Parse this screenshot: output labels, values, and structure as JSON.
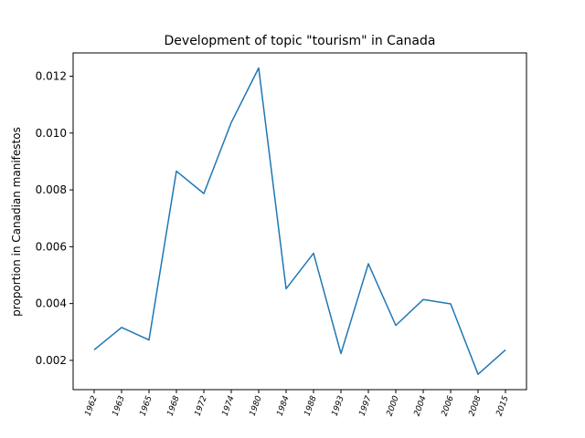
{
  "chart_data": {
    "type": "line",
    "title": "Development of topic \"tourism\" in Canada",
    "xlabel": "",
    "ylabel": "proportion in Canadian manifestos",
    "categories": [
      "1962",
      "1963",
      "1965",
      "1968",
      "1972",
      "1974",
      "1980",
      "1984",
      "1988",
      "1993",
      "1997",
      "2000",
      "2004",
      "2006",
      "2008",
      "2015"
    ],
    "values": [
      0.00237,
      0.00316,
      0.00272,
      0.00866,
      0.00787,
      0.01037,
      0.01229,
      0.00452,
      0.00577,
      0.00224,
      0.0054,
      0.00323,
      0.00414,
      0.00399,
      0.00151,
      0.00237
    ],
    "ylim": [
      0.00097,
      0.01282
    ],
    "yticks": [
      "0.002",
      "0.004",
      "0.006",
      "0.008",
      "0.010",
      "0.012"
    ],
    "grid": false,
    "line_color": "#1f77b4"
  }
}
